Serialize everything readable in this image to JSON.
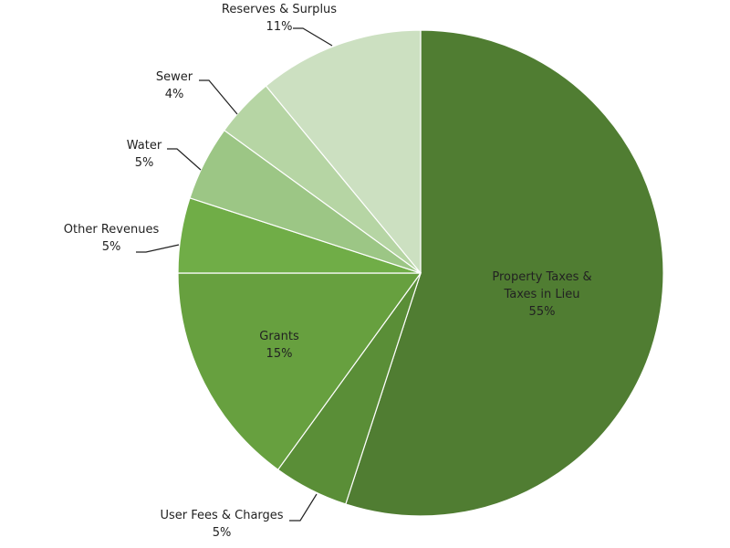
{
  "chart_data": {
    "type": "pie",
    "start_angle_deg": 0,
    "direction": "clockwise",
    "legend": "none",
    "slices": [
      {
        "name": "Property Taxes & Taxes in Lieu",
        "label_lines": [
          "Property Taxes &",
          "Taxes in Lieu"
        ],
        "value": 55,
        "percent_label": "55%",
        "color": "#507D32",
        "label_placement": "inside"
      },
      {
        "name": "User Fees & Charges",
        "label_lines": [
          "User Fees & Charges"
        ],
        "value": 5,
        "percent_label": "5%",
        "color": "#5A8E37",
        "label_placement": "outside"
      },
      {
        "name": "Grants",
        "label_lines": [
          "Grants"
        ],
        "value": 15,
        "percent_label": "15%",
        "color": "#67A03F",
        "label_placement": "inside"
      },
      {
        "name": "Other Revenues",
        "label_lines": [
          "Other Revenues"
        ],
        "value": 5,
        "percent_label": "5%",
        "color": "#70AD47",
        "label_placement": "outside"
      },
      {
        "name": "Water",
        "label_lines": [
          "Water"
        ],
        "value": 5,
        "percent_label": "5%",
        "color": "#9CC685",
        "label_placement": "outside"
      },
      {
        "name": "Sewer",
        "label_lines": [
          "Sewer"
        ],
        "value": 4,
        "percent_label": "4%",
        "color": "#B6D5A4",
        "label_placement": "outside"
      },
      {
        "name": "Reserves & Surplus",
        "label_lines": [
          "Reserves & Surplus"
        ],
        "value": 11,
        "percent_label": "11%",
        "color": "#CCE0C1",
        "label_placement": "outside"
      }
    ]
  }
}
